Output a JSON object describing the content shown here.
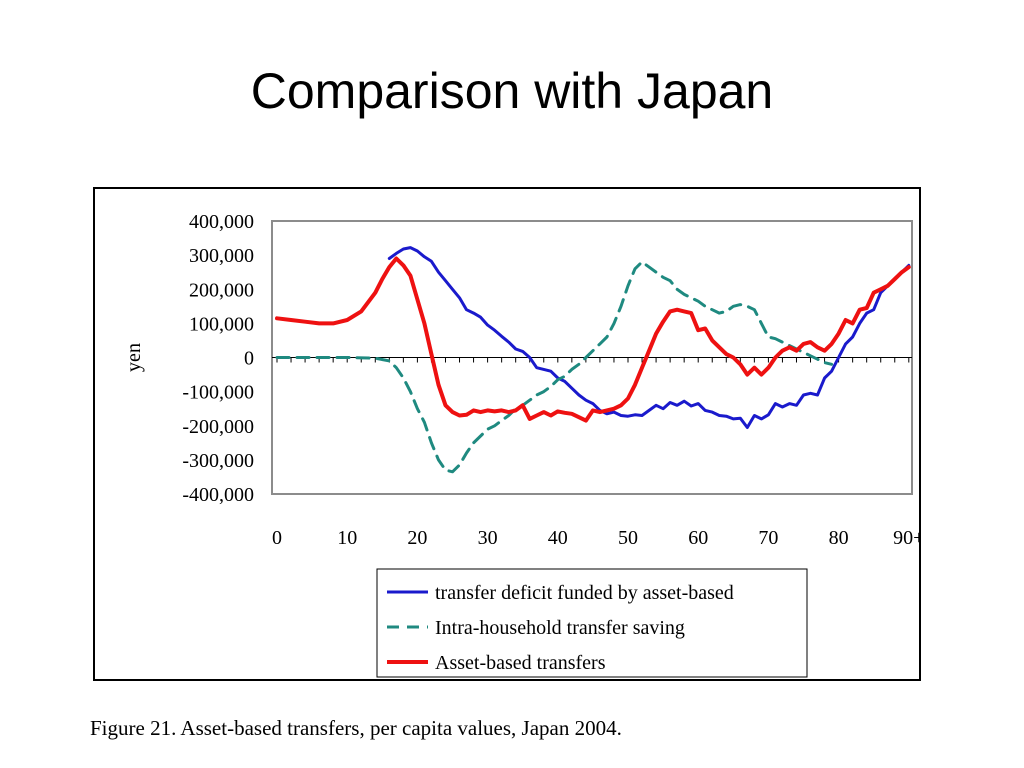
{
  "slide": {
    "title": "Comparison with Japan"
  },
  "caption": "Figure 21.  Asset-based transfers, per capita values, Japan 2004.",
  "chart_data": {
    "type": "line",
    "title": "",
    "xlabel": "",
    "ylabel": "yen",
    "xlim": [
      0,
      90
    ],
    "ylim": [
      -400000,
      400000
    ],
    "x_tick_labels": [
      "0",
      "10",
      "20",
      "30",
      "40",
      "50",
      "60",
      "70",
      "80",
      "90+"
    ],
    "y_tick_labels": [
      "400,000",
      "300,000",
      "200,000",
      "100,000",
      "0",
      "-100,000",
      "-200,000",
      "-300,000",
      "-400,000"
    ],
    "legend_position": "bottom-center",
    "grid": false,
    "series": [
      {
        "name": "transfer deficit funded by asset-based",
        "color": "#1a1acc",
        "style": "solid",
        "points": [
          [
            16,
            290000
          ],
          [
            17,
            305000
          ],
          [
            18,
            318000
          ],
          [
            19,
            322000
          ],
          [
            20,
            312000
          ],
          [
            21,
            295000
          ],
          [
            22,
            282000
          ],
          [
            23,
            250000
          ],
          [
            24,
            225000
          ],
          [
            25,
            200000
          ],
          [
            26,
            175000
          ],
          [
            27,
            140000
          ],
          [
            28,
            130000
          ],
          [
            29,
            118000
          ],
          [
            30,
            95000
          ],
          [
            31,
            80000
          ],
          [
            32,
            62000
          ],
          [
            33,
            45000
          ],
          [
            34,
            25000
          ],
          [
            35,
            18000
          ],
          [
            36,
            0
          ],
          [
            37,
            -30000
          ],
          [
            38,
            -35000
          ],
          [
            39,
            -40000
          ],
          [
            40,
            -60000
          ],
          [
            41,
            -70000
          ],
          [
            42,
            -90000
          ],
          [
            43,
            -110000
          ],
          [
            44,
            -125000
          ],
          [
            45,
            -135000
          ],
          [
            46,
            -155000
          ],
          [
            47,
            -165000
          ],
          [
            48,
            -160000
          ],
          [
            49,
            -170000
          ],
          [
            50,
            -172000
          ],
          [
            51,
            -168000
          ],
          [
            52,
            -170000
          ],
          [
            53,
            -155000
          ],
          [
            54,
            -140000
          ],
          [
            55,
            -150000
          ],
          [
            56,
            -132000
          ],
          [
            57,
            -140000
          ],
          [
            58,
            -128000
          ],
          [
            59,
            -142000
          ],
          [
            60,
            -135000
          ],
          [
            61,
            -155000
          ],
          [
            62,
            -160000
          ],
          [
            63,
            -170000
          ],
          [
            64,
            -172000
          ],
          [
            65,
            -180000
          ],
          [
            66,
            -178000
          ],
          [
            67,
            -205000
          ],
          [
            68,
            -170000
          ],
          [
            69,
            -180000
          ],
          [
            70,
            -168000
          ],
          [
            71,
            -135000
          ],
          [
            72,
            -145000
          ],
          [
            73,
            -135000
          ],
          [
            74,
            -140000
          ],
          [
            75,
            -110000
          ],
          [
            76,
            -105000
          ],
          [
            77,
            -110000
          ],
          [
            78,
            -60000
          ],
          [
            79,
            -40000
          ],
          [
            80,
            0
          ],
          [
            81,
            40000
          ],
          [
            82,
            60000
          ],
          [
            83,
            100000
          ],
          [
            84,
            130000
          ],
          [
            85,
            140000
          ],
          [
            86,
            190000
          ],
          [
            87,
            210000
          ],
          [
            88,
            230000
          ],
          [
            89,
            250000
          ],
          [
            90,
            270000
          ]
        ]
      },
      {
        "name": "Intra-household transfer saving",
        "color": "#1f8a80",
        "style": "dashed",
        "points": [
          [
            0,
            0
          ],
          [
            10,
            0
          ],
          [
            14,
            -2000
          ],
          [
            16,
            -10000
          ],
          [
            17,
            -30000
          ],
          [
            18,
            -60000
          ],
          [
            19,
            -100000
          ],
          [
            20,
            -150000
          ],
          [
            21,
            -190000
          ],
          [
            22,
            -250000
          ],
          [
            23,
            -300000
          ],
          [
            24,
            -330000
          ],
          [
            25,
            -335000
          ],
          [
            26,
            -315000
          ],
          [
            27,
            -280000
          ],
          [
            28,
            -250000
          ],
          [
            29,
            -230000
          ],
          [
            30,
            -210000
          ],
          [
            31,
            -200000
          ],
          [
            32,
            -185000
          ],
          [
            33,
            -170000
          ],
          [
            34,
            -150000
          ],
          [
            35,
            -140000
          ],
          [
            36,
            -125000
          ],
          [
            37,
            -110000
          ],
          [
            38,
            -100000
          ],
          [
            39,
            -85000
          ],
          [
            40,
            -65000
          ],
          [
            41,
            -55000
          ],
          [
            42,
            -35000
          ],
          [
            43,
            -20000
          ],
          [
            44,
            0
          ],
          [
            45,
            20000
          ],
          [
            46,
            40000
          ],
          [
            47,
            60000
          ],
          [
            48,
            100000
          ],
          [
            49,
            150000
          ],
          [
            50,
            210000
          ],
          [
            51,
            260000
          ],
          [
            52,
            280000
          ],
          [
            53,
            265000
          ],
          [
            54,
            250000
          ],
          [
            55,
            235000
          ],
          [
            56,
            225000
          ],
          [
            57,
            200000
          ],
          [
            58,
            185000
          ],
          [
            59,
            175000
          ],
          [
            60,
            165000
          ],
          [
            61,
            150000
          ],
          [
            62,
            140000
          ],
          [
            63,
            130000
          ],
          [
            64,
            135000
          ],
          [
            65,
            150000
          ],
          [
            66,
            155000
          ],
          [
            67,
            150000
          ],
          [
            68,
            140000
          ],
          [
            69,
            100000
          ],
          [
            70,
            60000
          ],
          [
            71,
            55000
          ],
          [
            72,
            45000
          ],
          [
            73,
            35000
          ],
          [
            74,
            25000
          ],
          [
            75,
            15000
          ],
          [
            76,
            5000
          ],
          [
            77,
            -5000
          ],
          [
            78,
            -15000
          ],
          [
            79,
            -20000
          ]
        ]
      },
      {
        "name": "Asset-based transfers",
        "color": "#ee1111",
        "style": "solid",
        "points": [
          [
            0,
            115000
          ],
          [
            2,
            110000
          ],
          [
            4,
            105000
          ],
          [
            6,
            100000
          ],
          [
            8,
            100000
          ],
          [
            10,
            110000
          ],
          [
            12,
            135000
          ],
          [
            14,
            190000
          ],
          [
            15,
            230000
          ],
          [
            16,
            265000
          ],
          [
            17,
            290000
          ],
          [
            18,
            270000
          ],
          [
            19,
            240000
          ],
          [
            20,
            170000
          ],
          [
            21,
            100000
          ],
          [
            22,
            10000
          ],
          [
            23,
            -80000
          ],
          [
            24,
            -140000
          ],
          [
            25,
            -160000
          ],
          [
            26,
            -170000
          ],
          [
            27,
            -168000
          ],
          [
            28,
            -155000
          ],
          [
            29,
            -160000
          ],
          [
            30,
            -155000
          ],
          [
            31,
            -158000
          ],
          [
            32,
            -155000
          ],
          [
            33,
            -160000
          ],
          [
            34,
            -155000
          ],
          [
            35,
            -140000
          ],
          [
            36,
            -180000
          ],
          [
            37,
            -170000
          ],
          [
            38,
            -160000
          ],
          [
            39,
            -170000
          ],
          [
            40,
            -158000
          ],
          [
            41,
            -162000
          ],
          [
            42,
            -165000
          ],
          [
            43,
            -175000
          ],
          [
            44,
            -185000
          ],
          [
            45,
            -155000
          ],
          [
            46,
            -160000
          ],
          [
            47,
            -155000
          ],
          [
            48,
            -150000
          ],
          [
            49,
            -140000
          ],
          [
            50,
            -120000
          ],
          [
            51,
            -80000
          ],
          [
            52,
            -30000
          ],
          [
            53,
            20000
          ],
          [
            54,
            70000
          ],
          [
            55,
            105000
          ],
          [
            56,
            135000
          ],
          [
            57,
            140000
          ],
          [
            58,
            135000
          ],
          [
            59,
            130000
          ],
          [
            60,
            80000
          ],
          [
            61,
            85000
          ],
          [
            62,
            50000
          ],
          [
            63,
            30000
          ],
          [
            64,
            10000
          ],
          [
            65,
            0
          ],
          [
            66,
            -20000
          ],
          [
            67,
            -50000
          ],
          [
            68,
            -30000
          ],
          [
            69,
            -50000
          ],
          [
            70,
            -30000
          ],
          [
            71,
            0
          ],
          [
            72,
            20000
          ],
          [
            73,
            30000
          ],
          [
            74,
            20000
          ],
          [
            75,
            40000
          ],
          [
            76,
            45000
          ],
          [
            77,
            30000
          ],
          [
            78,
            20000
          ],
          [
            79,
            40000
          ],
          [
            80,
            70000
          ],
          [
            81,
            110000
          ],
          [
            82,
            100000
          ],
          [
            83,
            140000
          ],
          [
            84,
            145000
          ],
          [
            85,
            190000
          ],
          [
            86,
            200000
          ],
          [
            87,
            210000
          ],
          [
            88,
            230000
          ],
          [
            89,
            250000
          ],
          [
            90,
            265000
          ]
        ]
      }
    ]
  }
}
